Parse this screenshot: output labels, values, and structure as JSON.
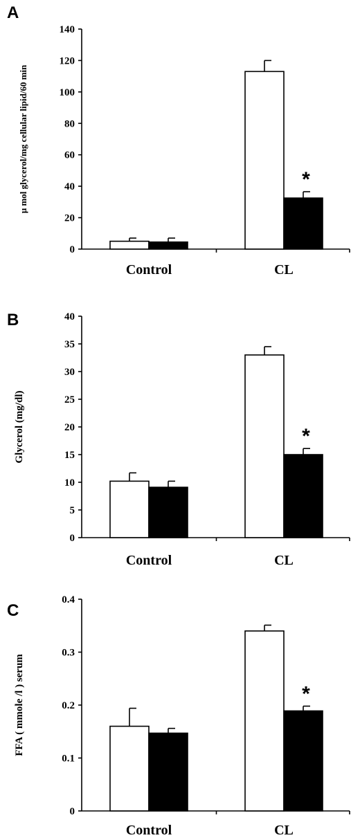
{
  "chart_data": [
    {
      "type": "bar",
      "panel": "A",
      "ylabel": "μ mol  glycerol/mg cellular lipid/60 min",
      "categories": [
        "Control",
        "CL"
      ],
      "ylim": [
        0,
        140
      ],
      "yticks": [
        0,
        20,
        40,
        60,
        80,
        100,
        120,
        140
      ],
      "series": [
        {
          "values": [
            5,
            113
          ],
          "errors": [
            2,
            7
          ],
          "color": "#ffffff"
        },
        {
          "values": [
            4.5,
            32.5
          ],
          "errors": [
            2.5,
            4
          ],
          "color": "#000000"
        }
      ],
      "annotations": [
        {
          "text": "*",
          "category": "CL",
          "series": 1
        }
      ]
    },
    {
      "type": "bar",
      "panel": "B",
      "ylabel": "Glycerol (mg/dl)",
      "categories": [
        "Control",
        "CL"
      ],
      "ylim": [
        0,
        40
      ],
      "yticks": [
        0,
        5,
        10,
        15,
        20,
        25,
        30,
        35,
        40
      ],
      "series": [
        {
          "values": [
            10.2,
            33
          ],
          "errors": [
            1.5,
            1.5
          ],
          "color": "#ffffff"
        },
        {
          "values": [
            9.1,
            15
          ],
          "errors": [
            1.1,
            1.1
          ],
          "color": "#000000"
        }
      ],
      "annotations": [
        {
          "text": "*",
          "category": "CL",
          "series": 1
        }
      ]
    },
    {
      "type": "bar",
      "panel": "C",
      "ylabel": "FFA ( mmole /l ) serum",
      "categories": [
        "Control",
        "CL"
      ],
      "ylim": [
        0,
        0.4
      ],
      "yticks": [
        0,
        0.1,
        0.2,
        0.3,
        0.4
      ],
      "series": [
        {
          "values": [
            0.16,
            0.34
          ],
          "errors": [
            0.034,
            0.011
          ],
          "color": "#ffffff"
        },
        {
          "values": [
            0.147,
            0.189
          ],
          "errors": [
            0.009,
            0.009
          ],
          "color": "#000000"
        }
      ],
      "annotations": [
        {
          "text": "*",
          "category": "CL",
          "series": 1
        }
      ]
    }
  ]
}
